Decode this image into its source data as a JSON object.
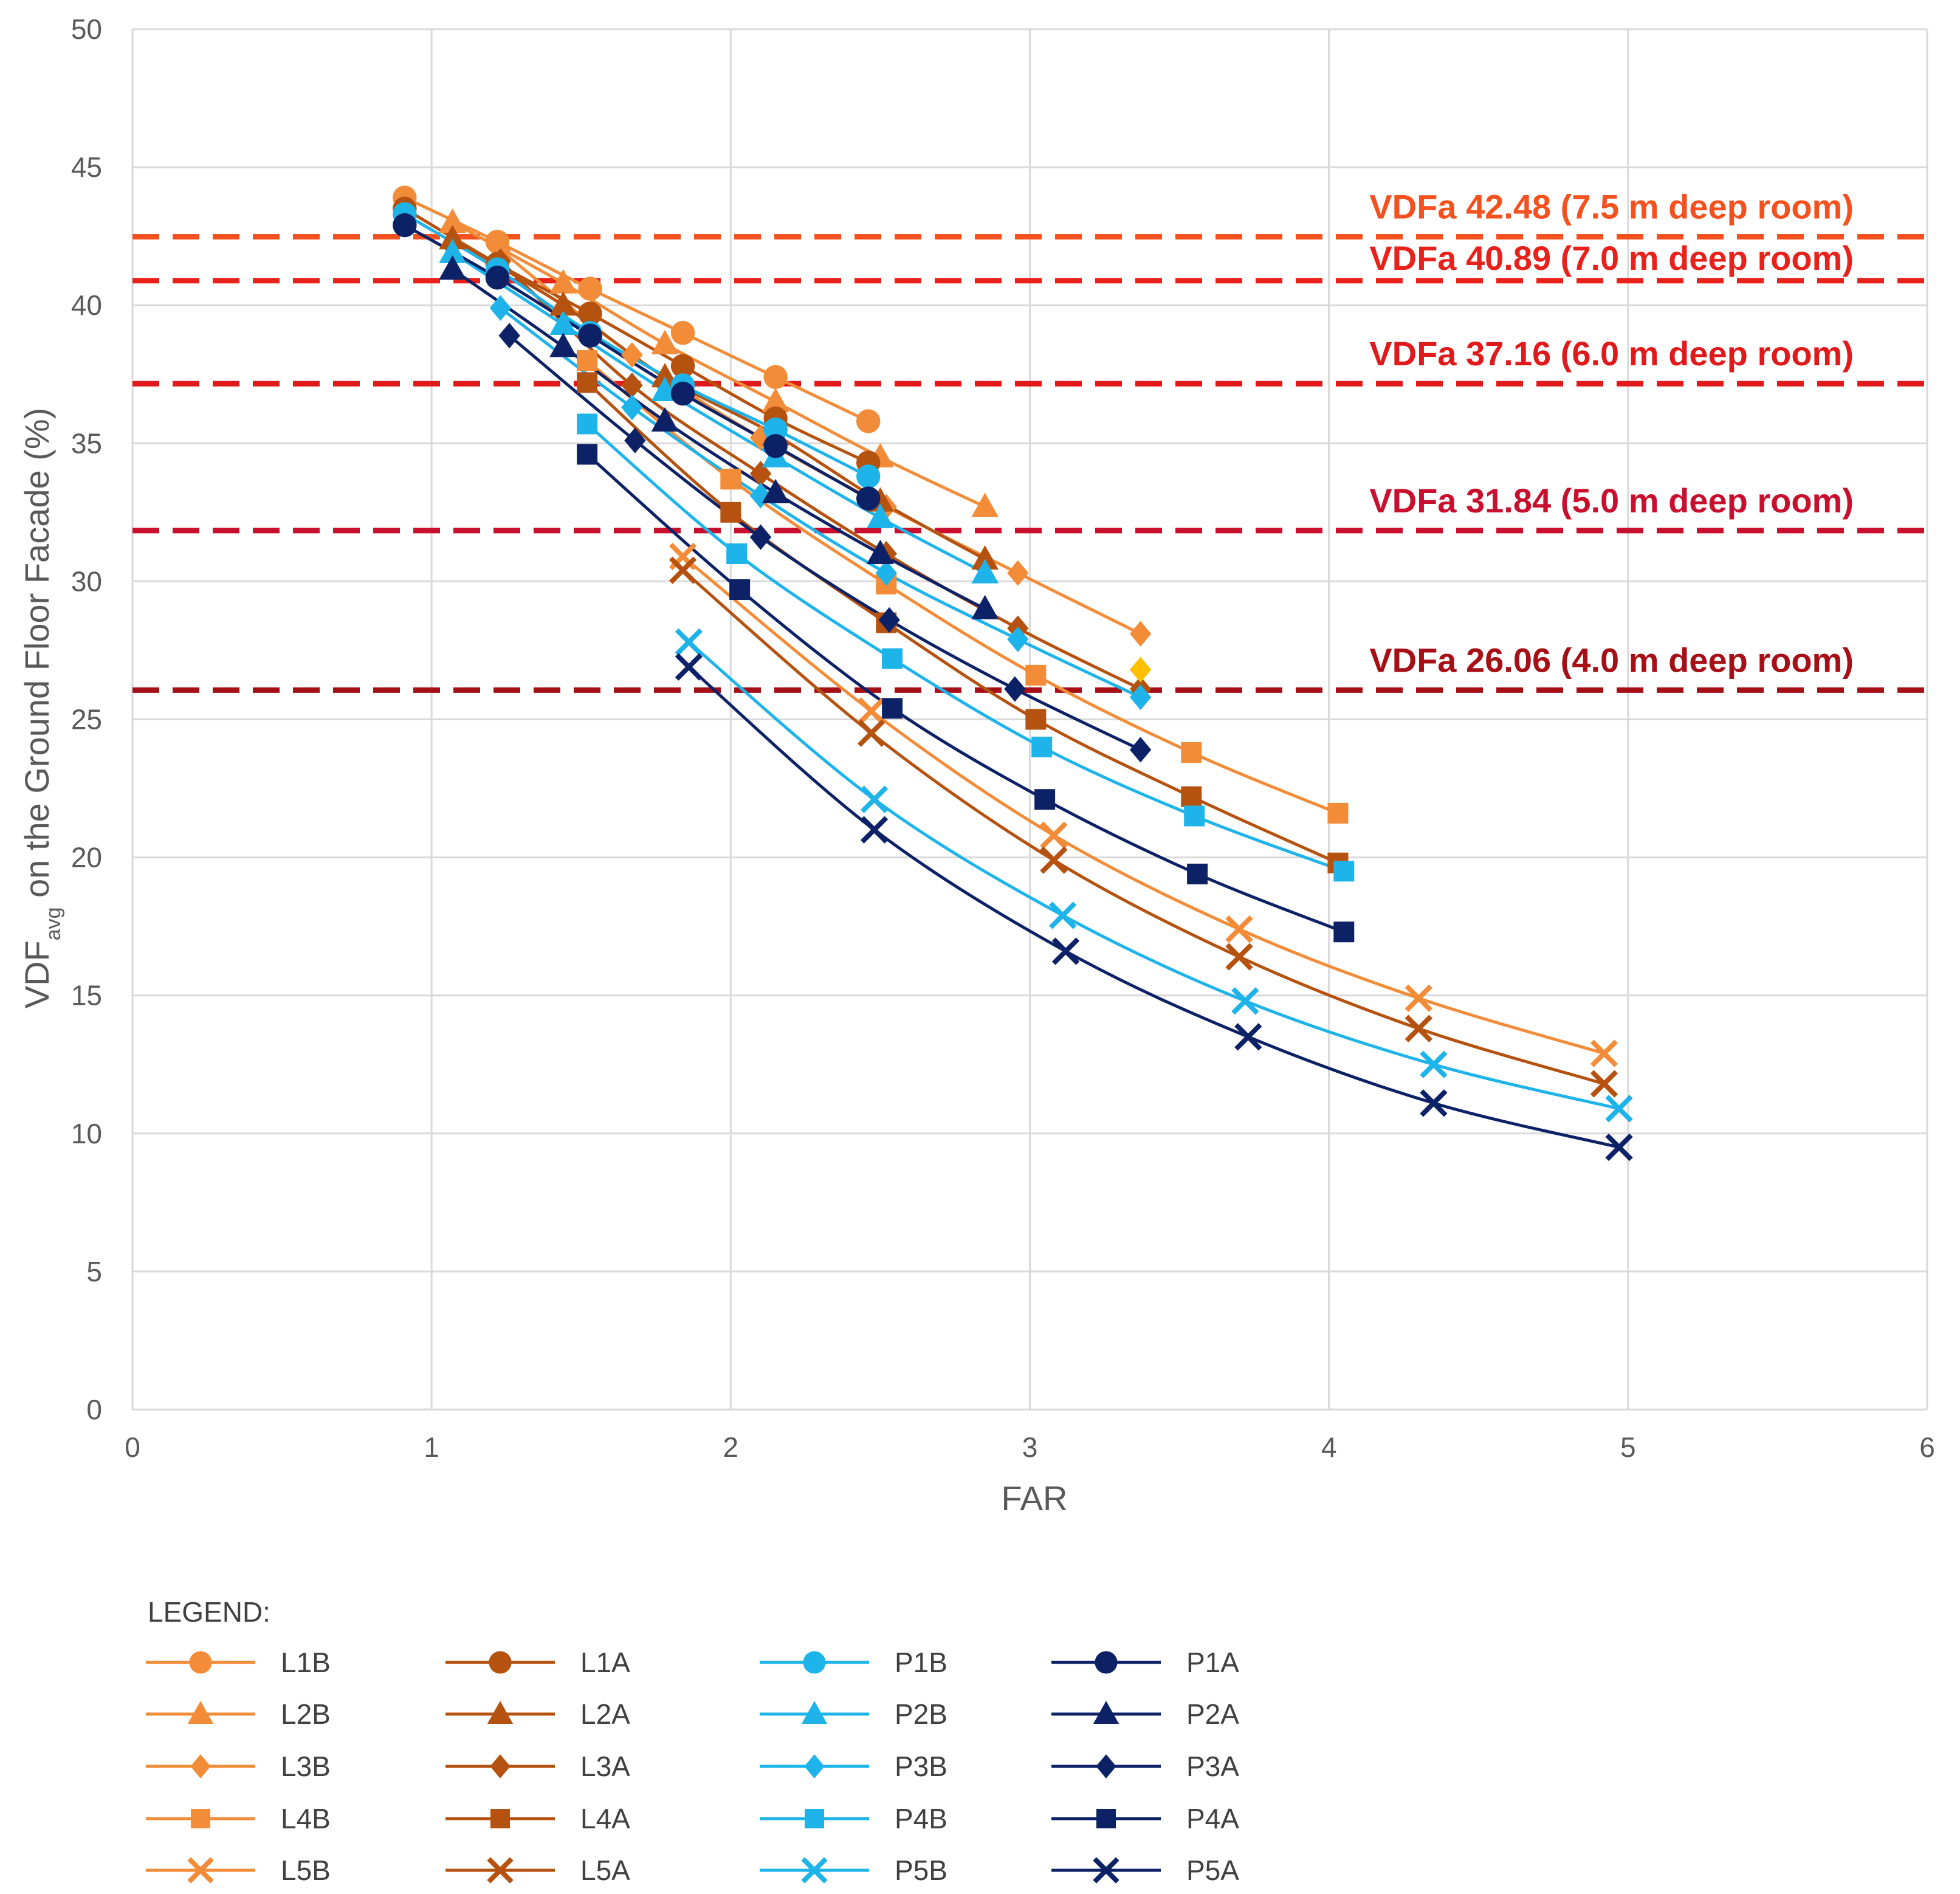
{
  "chart_data": {
    "type": "line",
    "xlabel": "FAR",
    "ylabel_main": "VDF",
    "ylabel_sub": "avg",
    "ylabel_rest": " on the Ground Floor Facade (%)",
    "xlim": [
      0,
      6
    ],
    "ylim": [
      0,
      50
    ],
    "x_ticks": [
      "0",
      "1",
      "2",
      "3",
      "4",
      "5",
      "6"
    ],
    "y_ticks": [
      "0",
      "5",
      "10",
      "15",
      "20",
      "25",
      "30",
      "35",
      "40",
      "45",
      "50"
    ],
    "grid": true,
    "legend_title": "LEGEND:",
    "legend_position": "bottom",
    "thresholds": [
      {
        "value": 42.48,
        "label": "VDFa 42.48 (7.5 m deep room)",
        "color": "#F4511E"
      },
      {
        "value": 40.89,
        "label": "VDFa 40.89 (7.0 m deep room)",
        "color": "#E8211A"
      },
      {
        "value": 37.16,
        "label": "VDFa 37.16 (6.0 m deep room)",
        "color": "#E01A1A"
      },
      {
        "value": 31.84,
        "label": "VDFa 31.84 (5.0 m deep room)",
        "color": "#C8102E"
      },
      {
        "value": 26.06,
        "label": "VDFa 26.06 (4.0 m deep room)",
        "color": "#A50F15"
      }
    ],
    "series": [
      {
        "name": "L1B",
        "color": "#F28C38",
        "marker": "circle",
        "x": [
          0.91,
          1.22,
          1.53,
          1.84,
          2.15,
          2.46
        ],
        "y": [
          43.9,
          42.3,
          40.6,
          39.0,
          37.4,
          35.8
        ]
      },
      {
        "name": "L2B",
        "color": "#F28C38",
        "marker": "triangle",
        "x": [
          1.07,
          1.44,
          1.78,
          2.15,
          2.5,
          2.85
        ],
        "y": [
          43.0,
          40.8,
          38.6,
          36.5,
          34.5,
          32.7
        ]
      },
      {
        "name": "L3B",
        "color": "#F28C38",
        "marker": "diamond",
        "x": [
          1.23,
          1.67,
          2.1,
          2.52,
          2.96,
          3.37
        ],
        "y": [
          42.0,
          38.2,
          35.2,
          32.7,
          30.3,
          28.1
        ]
      },
      {
        "name": "L4B",
        "color": "#F28C38",
        "marker": "square",
        "x": [
          1.52,
          2.0,
          2.52,
          3.02,
          3.54,
          4.03
        ],
        "y": [
          38.0,
          33.7,
          29.9,
          26.6,
          23.8,
          21.6
        ]
      },
      {
        "name": "L5B",
        "color": "#F28C38",
        "marker": "x",
        "x": [
          1.84,
          2.47,
          3.08,
          3.7,
          4.3,
          4.92
        ],
        "y": [
          30.9,
          25.3,
          20.8,
          17.4,
          14.9,
          12.9
        ]
      },
      {
        "name": "L1A",
        "color": "#B5520F",
        "marker": "circle",
        "x": [
          0.91,
          1.22,
          1.53,
          1.84,
          2.15,
          2.46
        ],
        "y": [
          43.5,
          41.5,
          39.7,
          37.8,
          35.9,
          34.3
        ]
      },
      {
        "name": "L2A",
        "color": "#B5520F",
        "marker": "triangle",
        "x": [
          1.07,
          1.44,
          1.78,
          2.15,
          2.5,
          2.85
        ],
        "y": [
          42.4,
          40.0,
          37.4,
          35.3,
          32.9,
          30.8
        ]
      },
      {
        "name": "L3A",
        "color": "#B5520F",
        "marker": "diamond",
        "x": [
          1.23,
          1.67,
          2.1,
          2.52,
          2.96,
          3.37
        ],
        "y": [
          41.6,
          37.1,
          33.9,
          31.0,
          28.3,
          26.1
        ]
      },
      {
        "name": "L4A",
        "color": "#B5520F",
        "marker": "square",
        "x": [
          1.52,
          2.0,
          2.52,
          3.02,
          3.54,
          4.03
        ],
        "y": [
          37.2,
          32.5,
          28.5,
          25.0,
          22.2,
          19.8
        ]
      },
      {
        "name": "L5A",
        "color": "#B5520F",
        "marker": "x",
        "x": [
          1.84,
          2.47,
          3.08,
          3.7,
          4.3,
          4.92
        ],
        "y": [
          30.4,
          24.5,
          19.9,
          16.4,
          13.8,
          11.8
        ]
      },
      {
        "name": "P1B",
        "color": "#1EB4EA",
        "marker": "circle",
        "x": [
          0.91,
          1.22,
          1.53,
          1.84,
          2.15,
          2.46
        ],
        "y": [
          43.3,
          41.3,
          39.0,
          37.1,
          35.5,
          33.8
        ]
      },
      {
        "name": "P2B",
        "color": "#1EB4EA",
        "marker": "triangle",
        "x": [
          1.07,
          1.44,
          1.78,
          2.15,
          2.5,
          2.85
        ],
        "y": [
          41.9,
          39.3,
          36.9,
          34.5,
          32.3,
          30.3
        ]
      },
      {
        "name": "P3B",
        "color": "#1EB4EA",
        "marker": "diamond",
        "x": [
          1.23,
          1.67,
          2.1,
          2.52,
          2.96,
          3.37
        ],
        "y": [
          39.9,
          36.3,
          33.1,
          30.3,
          27.9,
          25.8
        ]
      },
      {
        "name": "P4B",
        "color": "#1EB4EA",
        "marker": "square",
        "x": [
          1.52,
          2.02,
          2.54,
          3.04,
          3.55,
          4.05
        ],
        "y": [
          35.7,
          31.0,
          27.2,
          24.0,
          21.5,
          19.5
        ]
      },
      {
        "name": "P5B",
        "color": "#1EB4EA",
        "marker": "x",
        "x": [
          1.86,
          2.48,
          3.11,
          3.72,
          4.35,
          4.97
        ],
        "y": [
          27.8,
          22.1,
          17.9,
          14.8,
          12.5,
          10.9
        ]
      },
      {
        "name": "P1A",
        "color": "#0D2266",
        "marker": "circle",
        "x": [
          0.91,
          1.22,
          1.53,
          1.84,
          2.15,
          2.46
        ],
        "y": [
          42.9,
          41.0,
          38.9,
          36.8,
          34.9,
          33.0
        ]
      },
      {
        "name": "P2A",
        "color": "#0D2266",
        "marker": "triangle",
        "x": [
          1.07,
          1.44,
          1.78,
          2.15,
          2.5,
          2.85
        ],
        "y": [
          41.3,
          38.5,
          35.8,
          33.2,
          31.0,
          29.0
        ]
      },
      {
        "name": "P3A",
        "color": "#0D2266",
        "marker": "diamond",
        "x": [
          1.26,
          1.68,
          2.1,
          2.53,
          2.95,
          3.37
        ],
        "y": [
          38.9,
          35.1,
          31.6,
          28.6,
          26.1,
          23.9
        ]
      },
      {
        "name": "P4A",
        "color": "#0D2266",
        "marker": "square",
        "x": [
          1.52,
          2.03,
          2.54,
          3.05,
          3.56,
          4.05
        ],
        "y": [
          34.6,
          29.7,
          25.4,
          22.1,
          19.4,
          17.3
        ]
      },
      {
        "name": "P5A",
        "color": "#0D2266",
        "marker": "x",
        "x": [
          1.86,
          2.48,
          3.12,
          3.73,
          4.35,
          4.97
        ],
        "y": [
          26.9,
          21.0,
          16.6,
          13.5,
          11.1,
          9.5
        ]
      }
    ],
    "extra_points": [
      {
        "x": 3.37,
        "y": 26.8,
        "color": "#FFC000",
        "marker": "diamond"
      }
    ]
  }
}
